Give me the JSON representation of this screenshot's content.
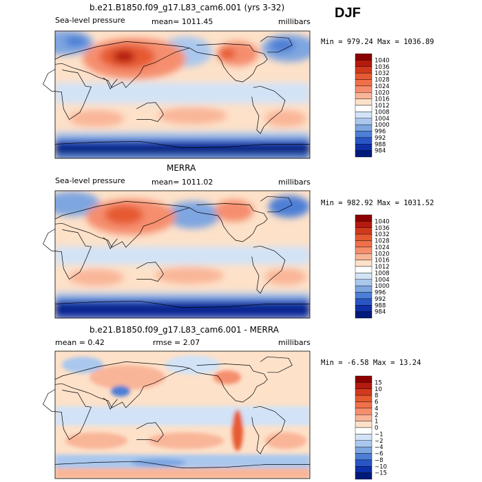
{
  "season": "DJF",
  "chart_data": [
    {
      "type": "heatmap",
      "title": "b.e21.B1850.f09_g17.L83_cam6.001 (yrs 3-32)",
      "left_label": "Sea-level pressure",
      "center_label": "mean= 1011.45",
      "right_label": "millibars",
      "stats": "Min = 979.24 Max = 1036.89",
      "min": 979.24,
      "max": 1036.89,
      "colorbar": {
        "labels": [
          "1040",
          "1036",
          "1032",
          "1028",
          "1024",
          "1020",
          "1016",
          "1012",
          "1008",
          "1004",
          "1000",
          "996",
          "992",
          "988",
          "984"
        ],
        "colors": [
          "#8b0000",
          "#b51a0e",
          "#d03a1c",
          "#e65a32",
          "#f0704a",
          "#f58e6e",
          "#f9b598",
          "#fde1c9",
          "#ffffff",
          "#d2e3f7",
          "#aac8ee",
          "#7ea6e0",
          "#4d7fd6",
          "#2a55c4",
          "#0f2fa8",
          "#001a7a"
        ],
        "label_dy": -2
      }
    },
    {
      "type": "heatmap",
      "title": "MERRA",
      "left_label": "Sea-level pressure",
      "center_label": "mean= 1011.02",
      "right_label": "millibars",
      "stats": "Min = 982.92 Max = 1031.52",
      "min": 982.92,
      "max": 1031.52,
      "colorbar": {
        "labels": [
          "1040",
          "1036",
          "1032",
          "1028",
          "1024",
          "1020",
          "1016",
          "1012",
          "1008",
          "1004",
          "1000",
          "996",
          "992",
          "988",
          "984"
        ],
        "colors": [
          "#8b0000",
          "#b51a0e",
          "#d03a1c",
          "#e65a32",
          "#f0704a",
          "#f58e6e",
          "#f9b598",
          "#fde1c9",
          "#ffffff",
          "#d2e3f7",
          "#aac8ee",
          "#7ea6e0",
          "#4d7fd6",
          "#2a55c4",
          "#0f2fa8",
          "#001a7a"
        ],
        "label_dy": -2
      }
    },
    {
      "type": "heatmap",
      "title": "b.e21.B1850.f09_g17.L83_cam6.001 - MERRA",
      "left_label": "mean = 0.42",
      "center_label": "rmse = 2.07",
      "right_label": "millibars",
      "stats": "Min = -6.58 Max = 13.24",
      "min": -6.58,
      "max": 13.24,
      "colorbar": {
        "labels": [
          "15",
          "10",
          "8",
          "6",
          "4",
          "2",
          "1",
          "0",
          "−1",
          "−2",
          "−4",
          "−6",
          "−8",
          "−10",
          "−15"
        ],
        "colors": [
          "#8b0000",
          "#b51a0e",
          "#d03a1c",
          "#e65a32",
          "#f0704a",
          "#f58e6e",
          "#f9b598",
          "#fde1c9",
          "#ffffff",
          "#d2e3f7",
          "#aac8ee",
          "#7ea6e0",
          "#4d7fd6",
          "#2a55c4",
          "#0f2fa8",
          "#001a7a"
        ],
        "label_dy": -2
      }
    }
  ]
}
